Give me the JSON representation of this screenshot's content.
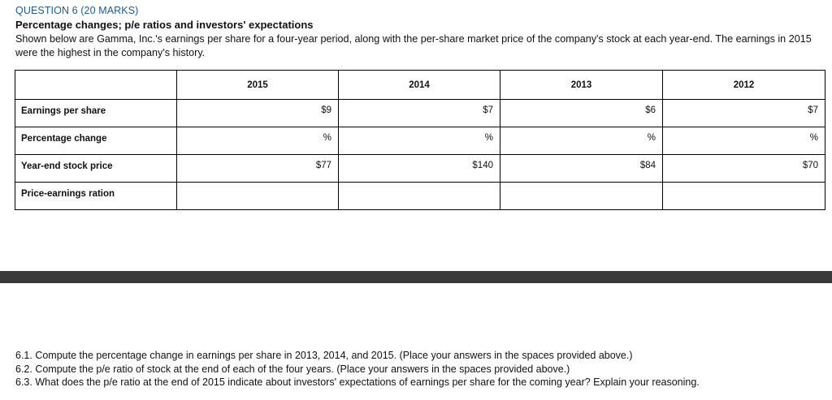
{
  "header": {
    "question": "QUESTION 6 (20 MARKS)",
    "title": "Percentage changes; p/e ratios and investors' expectations",
    "intro": "Shown below are Gamma, Inc.'s earnings per share for a four-year period, along with the per-share market price of the company's stock at each year-end. The earnings in 2015 were the highest in the company's history."
  },
  "table": {
    "years": [
      "2015",
      "2014",
      "2013",
      "2012"
    ],
    "rows": [
      {
        "label": "Earnings per share",
        "values": [
          "$9",
          "$7",
          "$6",
          "$7"
        ]
      },
      {
        "label": "Percentage change",
        "values": [
          "%",
          "%",
          "%",
          "%"
        ]
      },
      {
        "label": "Year-end stock price",
        "values": [
          "$77",
          "$140",
          "$84",
          "$70"
        ]
      },
      {
        "label": "Price-earnings ration",
        "values": [
          "",
          "",
          "",
          ""
        ]
      }
    ]
  },
  "questions": [
    "6.1.  Compute the percentage change in earnings per share in 2013, 2014, and 2015. (Place your answers in the spaces provided above.)",
    "6.2. Compute the p/e ratio of stock at the end of each of the four years. (Place your answers in the spaces provided above.)",
    "6.3. What does the p/e ratio at the end of 2015 indicate about investors' expectations of earnings per share for the coming year? Explain your reasoning."
  ]
}
